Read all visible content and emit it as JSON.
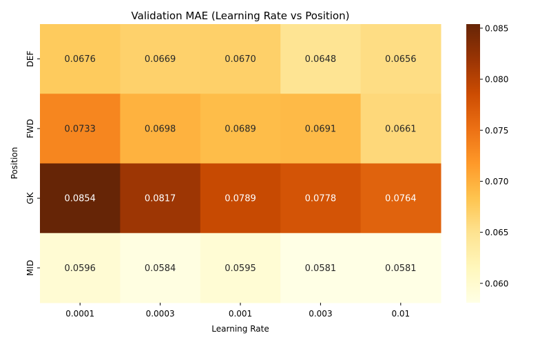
{
  "chart_data": {
    "type": "heatmap",
    "title": "Validation MAE (Learning Rate vs Position)",
    "xlabel": "Learning Rate",
    "ylabel": "Position",
    "x_categories": [
      "0.0001",
      "0.0003",
      "0.001",
      "0.003",
      "0.01"
    ],
    "y_categories": [
      "DEF",
      "FWD",
      "GK",
      "MID"
    ],
    "values": [
      [
        0.0676,
        0.0669,
        0.067,
        0.0648,
        0.0656
      ],
      [
        0.0733,
        0.0698,
        0.0689,
        0.0691,
        0.0661
      ],
      [
        0.0854,
        0.0817,
        0.0789,
        0.0778,
        0.0764
      ],
      [
        0.0596,
        0.0584,
        0.0595,
        0.0581,
        0.0581
      ]
    ],
    "cell_labels": [
      [
        "0.0676",
        "0.0669",
        "0.0670",
        "0.0648",
        "0.0656"
      ],
      [
        "0.0733",
        "0.0698",
        "0.0689",
        "0.0691",
        "0.0661"
      ],
      [
        "0.0854",
        "0.0817",
        "0.0789",
        "0.0778",
        "0.0764"
      ],
      [
        "0.0596",
        "0.0584",
        "0.0595",
        "0.0581",
        "0.0581"
      ]
    ],
    "colormap": "YlOrBr",
    "color_range": [
      0.0581,
      0.0854
    ],
    "colorbar_ticks": [
      "0.060",
      "0.065",
      "0.070",
      "0.075",
      "0.080",
      "0.085"
    ],
    "colorbar_tick_values": [
      0.06,
      0.065,
      0.07,
      0.075,
      0.08,
      0.085
    ],
    "colorbar_stops": [
      "#ffffe5",
      "#fff7bc",
      "#fee391",
      "#fec44f",
      "#fe9929",
      "#ec7014",
      "#cc4c02",
      "#993404",
      "#662506"
    ],
    "annotation_colors": {
      "light": "#ffffff",
      "dark": "#262626"
    }
  }
}
